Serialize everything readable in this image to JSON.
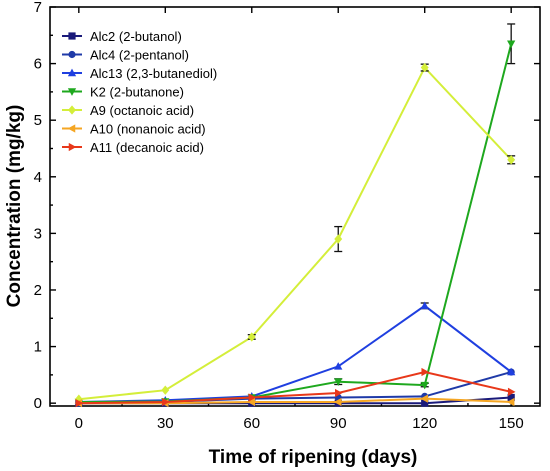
{
  "chart_data": {
    "type": "line",
    "title": "",
    "xlabel": "Time of ripening (days)",
    "ylabel": "Concentration (mg/kg)",
    "x": [
      0,
      30,
      60,
      90,
      120,
      150
    ],
    "xticks": [
      "0",
      "30",
      "60",
      "90",
      "120",
      "150"
    ],
    "xlim": [
      -10,
      160
    ],
    "ylim": [
      -0.05,
      7
    ],
    "yticks": [
      "0",
      "1",
      "2",
      "3",
      "4",
      "5",
      "6",
      "7"
    ],
    "grid": false,
    "legend_position": "top-left",
    "series": [
      {
        "name": "Alc2 (2-butanol)",
        "color": "#1a1a7a",
        "marker": "square",
        "values": [
          0.0,
          0.0,
          0.0,
          0.0,
          0.0,
          0.1
        ],
        "errors": [
          0,
          0,
          0,
          0,
          0,
          0
        ]
      },
      {
        "name": "Alc4 (2-pentanol)",
        "color": "#1f3aa8",
        "marker": "circle",
        "values": [
          0.0,
          0.02,
          0.08,
          0.1,
          0.12,
          0.55
        ],
        "errors": [
          0,
          0,
          0,
          0,
          0,
          0
        ]
      },
      {
        "name": "Alc13 (2,3-butanediol)",
        "color": "#1f3fe0",
        "marker": "triangle-up",
        "values": [
          0.02,
          0.05,
          0.12,
          0.65,
          1.72,
          0.55
        ],
        "errors": [
          0,
          0,
          0,
          0,
          0.05,
          0
        ]
      },
      {
        "name": "K2 (2-butanone)",
        "color": "#1ea81e",
        "marker": "triangle-down",
        "values": [
          0.02,
          0.03,
          0.1,
          0.38,
          0.32,
          6.35
        ],
        "errors": [
          0,
          0,
          0,
          0.05,
          0.03,
          0.35
        ]
      },
      {
        "name": "A9 (octanoic acid)",
        "color": "#d4ee3a",
        "marker": "diamond",
        "values": [
          0.07,
          0.23,
          1.17,
          2.9,
          5.93,
          4.3
        ],
        "errors": [
          0,
          0,
          0.04,
          0.22,
          0.06,
          0.07
        ]
      },
      {
        "name": "A10 (nonanoic acid)",
        "color": "#f5a623",
        "marker": "triangle-left",
        "values": [
          0.0,
          0.0,
          0.02,
          0.02,
          0.08,
          0.02
        ],
        "errors": [
          0,
          0,
          0,
          0,
          0,
          0
        ]
      },
      {
        "name": "A11 (decanoic acid)",
        "color": "#e8381a",
        "marker": "triangle-right",
        "values": [
          0.0,
          0.02,
          0.1,
          0.18,
          0.55,
          0.2
        ],
        "errors": [
          0,
          0,
          0,
          0,
          0,
          0
        ]
      }
    ]
  }
}
